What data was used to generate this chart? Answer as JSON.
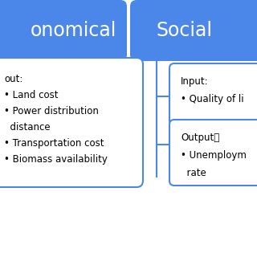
{
  "bg_color": "#ffffff",
  "blue_header_color": "#4B87E8",
  "box_border_color": "#4B87E8",
  "header_text_color": "#ffffff",
  "header1_text": "onomical",
  "header2_text": "Social",
  "left_box_lines": [
    "out:",
    "• Land cost",
    "• Power distribution",
    "  distance",
    "• Transportation cost",
    "• Biomass availability"
  ],
  "right_input_lines": [
    "Input:",
    "• Quality of li"
  ],
  "right_output_lines": [
    "Output：",
    "• Unemploym",
    "  rate"
  ],
  "header_fontsize": 17,
  "body_fontsize": 8.5,
  "fig_w": 3.2,
  "fig_h": 3.2,
  "dpi": 100
}
